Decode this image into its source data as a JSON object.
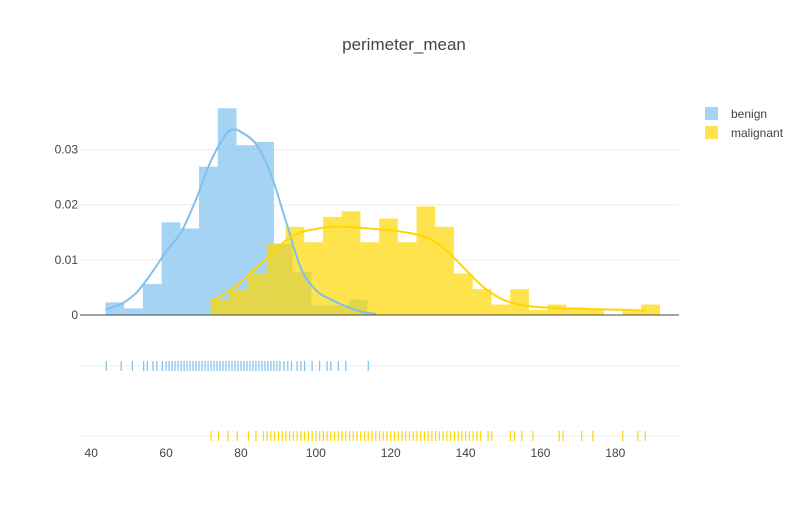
{
  "colors": {
    "benign": "#7EC0EE",
    "malignant": "#FFD700",
    "grid": "#EEEEEE",
    "axis_line": "#444444",
    "text": "#444444"
  },
  "chart_data": {
    "type": "histogram",
    "title": "perimeter_mean",
    "histnorm": "probability density",
    "bin_width": 5,
    "xlim": [
      37,
      197
    ],
    "ylim": [
      0,
      0.039
    ],
    "x_ticks": [
      40,
      60,
      80,
      100,
      120,
      140,
      160,
      180
    ],
    "y_ticks": [
      {
        "value": 0,
        "label": "0"
      },
      {
        "value": 0.01,
        "label": "0.01"
      },
      {
        "value": 0.02,
        "label": "0.02"
      },
      {
        "value": 0.03,
        "label": "0.03"
      }
    ],
    "legend_position": "top-right",
    "series": [
      {
        "name": "benign",
        "color_key": "benign",
        "bins": [
          {
            "x0": 43.8,
            "x1": 48.8,
            "y": 0.0023
          },
          {
            "x0": 48.8,
            "x1": 53.8,
            "y": 0.0012
          },
          {
            "x0": 53.8,
            "x1": 58.8,
            "y": 0.0056
          },
          {
            "x0": 58.8,
            "x1": 63.8,
            "y": 0.0168
          },
          {
            "x0": 63.8,
            "x1": 68.8,
            "y": 0.0157
          },
          {
            "x0": 68.8,
            "x1": 73.8,
            "y": 0.0269
          },
          {
            "x0": 73.8,
            "x1": 78.8,
            "y": 0.0375
          },
          {
            "x0": 78.8,
            "x1": 83.8,
            "y": 0.0308
          },
          {
            "x0": 83.8,
            "x1": 88.8,
            "y": 0.0314
          },
          {
            "x0": 88.8,
            "x1": 93.8,
            "y": 0.0129
          },
          {
            "x0": 93.8,
            "x1": 98.8,
            "y": 0.0078
          },
          {
            "x0": 98.8,
            "x1": 103.8,
            "y": 0.0017
          },
          {
            "x0": 103.8,
            "x1": 108.8,
            "y": 0.0017
          },
          {
            "x0": 108.8,
            "x1": 113.8,
            "y": 0.0028
          }
        ],
        "kde": [
          [
            43.8,
            0.001
          ],
          [
            48,
            0.002
          ],
          [
            52,
            0.004
          ],
          [
            56,
            0.0075
          ],
          [
            60,
            0.0115
          ],
          [
            64,
            0.015
          ],
          [
            68,
            0.021
          ],
          [
            72,
            0.028
          ],
          [
            76,
            0.0328
          ],
          [
            78,
            0.0336
          ],
          [
            80,
            0.0332
          ],
          [
            84,
            0.031
          ],
          [
            88,
            0.0255
          ],
          [
            92,
            0.017
          ],
          [
            96,
            0.0085
          ],
          [
            100,
            0.0045
          ],
          [
            104,
            0.0028
          ],
          [
            108,
            0.0016
          ],
          [
            112,
            0.0006
          ],
          [
            116,
            0.0002
          ]
        ],
        "rug": [
          44,
          48,
          51,
          54,
          55,
          56.5,
          57.5,
          59,
          60,
          60.8,
          61.6,
          62.4,
          63.2,
          64,
          64.8,
          65.6,
          66.4,
          67.2,
          68,
          68.8,
          69.6,
          70.4,
          71.2,
          72,
          72.8,
          73.6,
          74.4,
          75.2,
          76,
          76.8,
          77.6,
          78.4,
          79.2,
          80,
          80.8,
          81.6,
          82.4,
          83.2,
          84,
          84.8,
          85.6,
          86.4,
          87.2,
          88,
          88.8,
          89.6,
          90.4,
          91.5,
          92.5,
          93.5,
          95,
          96,
          97,
          99,
          101,
          103,
          104,
          106,
          108,
          114
        ]
      },
      {
        "name": "malignant",
        "color_key": "malignant",
        "bins": [
          {
            "x0": 71.9,
            "x1": 76.9,
            "y": 0.0028
          },
          {
            "x0": 76.9,
            "x1": 81.9,
            "y": 0.0045
          },
          {
            "x0": 81.9,
            "x1": 86.9,
            "y": 0.0075
          },
          {
            "x0": 86.9,
            "x1": 91.9,
            "y": 0.013
          },
          {
            "x0": 91.9,
            "x1": 96.9,
            "y": 0.016
          },
          {
            "x0": 96.9,
            "x1": 101.9,
            "y": 0.0132
          },
          {
            "x0": 101.9,
            "x1": 106.9,
            "y": 0.0178
          },
          {
            "x0": 106.9,
            "x1": 111.9,
            "y": 0.0188
          },
          {
            "x0": 111.9,
            "x1": 116.9,
            "y": 0.0132
          },
          {
            "x0": 116.9,
            "x1": 121.9,
            "y": 0.0175
          },
          {
            "x0": 121.9,
            "x1": 126.9,
            "y": 0.0132
          },
          {
            "x0": 126.9,
            "x1": 131.9,
            "y": 0.0197
          },
          {
            "x0": 131.9,
            "x1": 136.9,
            "y": 0.016
          },
          {
            "x0": 136.9,
            "x1": 141.9,
            "y": 0.0075
          },
          {
            "x0": 141.9,
            "x1": 146.9,
            "y": 0.0047
          },
          {
            "x0": 146.9,
            "x1": 151.9,
            "y": 0.0019
          },
          {
            "x0": 151.9,
            "x1": 156.9,
            "y": 0.0047
          },
          {
            "x0": 156.9,
            "x1": 161.9,
            "y": 0.0009
          },
          {
            "x0": 161.9,
            "x1": 166.9,
            "y": 0.0019
          },
          {
            "x0": 166.9,
            "x1": 171.9,
            "y": 0.0014
          },
          {
            "x0": 171.9,
            "x1": 176.9,
            "y": 0.0009
          },
          {
            "x0": 176.9,
            "x1": 181.9,
            "y": 0.0
          },
          {
            "x0": 181.9,
            "x1": 186.9,
            "y": 0.0009
          },
          {
            "x0": 186.9,
            "x1": 191.9,
            "y": 0.0019
          }
        ],
        "kde": [
          [
            71.9,
            0.0025
          ],
          [
            76,
            0.004
          ],
          [
            80,
            0.006
          ],
          [
            84,
            0.0085
          ],
          [
            88,
            0.011
          ],
          [
            92,
            0.0135
          ],
          [
            96,
            0.015
          ],
          [
            100,
            0.0156
          ],
          [
            104,
            0.016
          ],
          [
            108,
            0.016
          ],
          [
            112,
            0.0158
          ],
          [
            116,
            0.0156
          ],
          [
            120,
            0.0154
          ],
          [
            124,
            0.015
          ],
          [
            128,
            0.0144
          ],
          [
            132,
            0.0132
          ],
          [
            136,
            0.011
          ],
          [
            140,
            0.0082
          ],
          [
            144,
            0.0055
          ],
          [
            148,
            0.0035
          ],
          [
            152,
            0.0023
          ],
          [
            156,
            0.0017
          ],
          [
            160,
            0.0014
          ],
          [
            166,
            0.0012
          ],
          [
            172,
            0.0011
          ],
          [
            178,
            0.001
          ],
          [
            184,
            0.0009
          ],
          [
            188,
            0.0008
          ]
        ],
        "rug": [
          72,
          74,
          76.5,
          79,
          82,
          84,
          86,
          87,
          88,
          89,
          90,
          91,
          92,
          93,
          94,
          95,
          96,
          97,
          98,
          99,
          100,
          101,
          102,
          103,
          104,
          105,
          106,
          107,
          108,
          109,
          110,
          111,
          112,
          113,
          114,
          115,
          116,
          117,
          118,
          119,
          120,
          121,
          122,
          123,
          124,
          125,
          126,
          127,
          128,
          129,
          130,
          131,
          132,
          133,
          134,
          135,
          136,
          137,
          138,
          139,
          140,
          141,
          142,
          143,
          144,
          146,
          147,
          152,
          153,
          155,
          158,
          165,
          166,
          171,
          174,
          182,
          186,
          188
        ]
      }
    ]
  }
}
